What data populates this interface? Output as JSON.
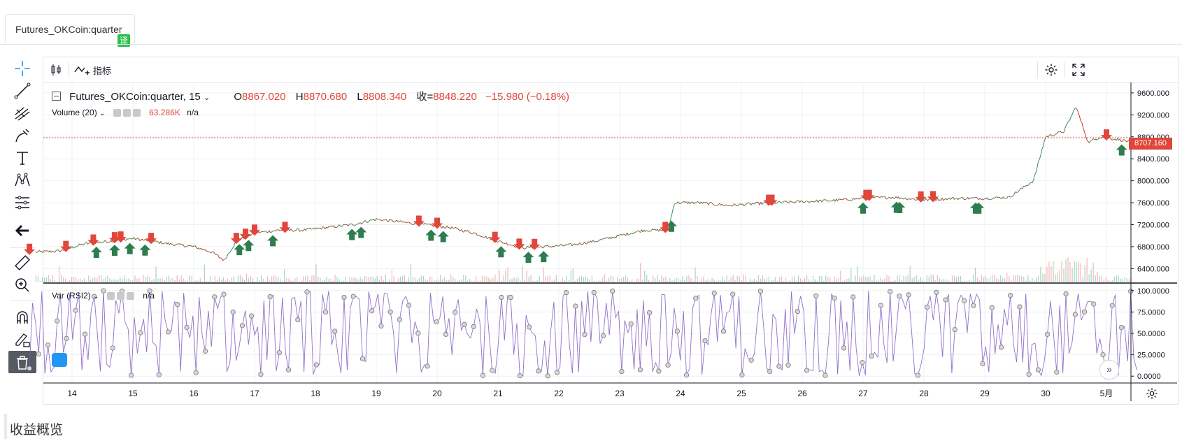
{
  "tab": {
    "label": "Futures_OKCoin:quarter",
    "badge": "译"
  },
  "toolbar": {
    "indicators_label": "指标"
  },
  "legend": {
    "symbol": "Futures_OKCoin:quarter, 15",
    "o_label": "O",
    "o": "8867.020",
    "h_label": "H",
    "h": "8870.680",
    "l_label": "L",
    "l": "8808.340",
    "c_label": "收=",
    "c": "8848.220",
    "change": "−15.980 (−0.18%)",
    "volume_title": "Volume (20)",
    "volume_value": "63.286K",
    "volume_na": "n/a",
    "rsi_title": "Var (RSI2)",
    "rsi_na": "n/a"
  },
  "price_tag": "8707.160",
  "footer": {
    "title": "收益概览"
  },
  "colors": {
    "up": "#26a69a",
    "down": "#ef5350",
    "buy_arrow": "#2e7d4f",
    "sell_arrow": "#e0463a",
    "rsi": "#7e57c2"
  },
  "chart_data": [
    {
      "type": "line",
      "name": "price",
      "y_ticks": [
        6400,
        6800,
        7200,
        7600,
        8000,
        8400,
        8800,
        9200,
        9600
      ],
      "y_tick_labels": [
        "6400.000",
        "6800.000",
        "7200.000",
        "7600.000",
        "8000.000",
        "8400.000",
        "8800.000",
        "9200.000",
        "9600.000"
      ],
      "ylim": [
        6150,
        9790
      ],
      "x_tick_labels": [
        "14",
        "15",
        "16",
        "17",
        "18",
        "19",
        "20",
        "21",
        "22",
        "23",
        "24",
        "25",
        "26",
        "27",
        "28",
        "29",
        "30",
        "5月"
      ],
      "x": [
        13.4,
        13.8,
        14.2,
        14.6,
        15.0,
        15.3,
        15.6,
        16.0,
        16.3,
        16.5,
        16.7,
        17.0,
        17.4,
        17.8,
        18.2,
        18.6,
        19.0,
        19.4,
        19.8,
        20.2,
        20.6,
        21.0,
        21.4,
        21.8,
        22.2,
        22.6,
        23.0,
        23.4,
        23.8,
        23.9,
        24.3,
        24.8,
        25.2,
        25.6,
        26.0,
        26.5,
        27.0,
        27.5,
        28.0,
        28.5,
        29.0,
        29.4,
        29.8,
        30.0,
        30.3,
        30.5,
        30.7,
        30.9,
        31.2,
        31.4
      ],
      "values": [
        6700,
        6720,
        6850,
        6900,
        6950,
        6900,
        6850,
        6800,
        6700,
        6550,
        6900,
        7050,
        7100,
        7100,
        7150,
        7200,
        7300,
        7250,
        7200,
        7150,
        7050,
        6900,
        6780,
        6800,
        6830,
        6900,
        7000,
        7100,
        7100,
        7600,
        7600,
        7550,
        7580,
        7600,
        7620,
        7640,
        7680,
        7700,
        7650,
        7680,
        7680,
        7700,
        8000,
        8800,
        8900,
        9350,
        8700,
        8800,
        8750,
        8707
      ],
      "last_price": 8707.16,
      "buy_signals_x": [
        14.4,
        14.7,
        14.95,
        15.2,
        16.75,
        16.9,
        17.3,
        18.6,
        18.75,
        19.9,
        20.1,
        21.05,
        21.5,
        21.75,
        23.85,
        27.0,
        27.55,
        27.6,
        28.85,
        28.9,
        31.25
      ],
      "sell_signals_x": [
        13.3,
        13.9,
        14.35,
        14.7,
        14.8,
        15.3,
        16.7,
        16.85,
        17.0,
        17.5,
        19.7,
        20.0,
        20.95,
        21.35,
        21.6,
        23.75,
        25.45,
        25.5,
        27.05,
        27.1,
        27.95,
        28.15,
        31.0
      ]
    },
    {
      "type": "bar",
      "name": "volume",
      "value_label": "63.286K"
    },
    {
      "type": "line",
      "name": "Var (RSI2)",
      "ylim": [
        -8,
        108
      ],
      "y_ticks": [
        0,
        25,
        50,
        75,
        100
      ],
      "y_tick_labels": [
        "0.0000",
        "25.0000",
        "50.0000",
        "75.0000",
        "100.0000"
      ],
      "x_range": [
        13.3,
        31.5
      ],
      "points": 360,
      "min": 0,
      "max": 100
    }
  ]
}
